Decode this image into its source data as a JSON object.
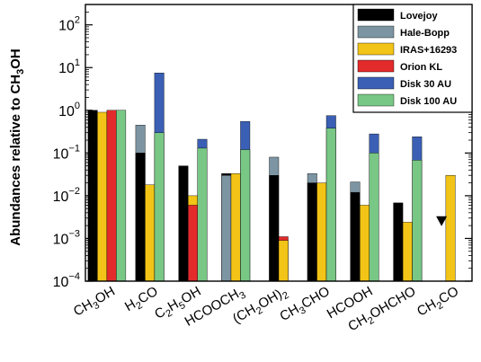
{
  "chart_data": {
    "type": "bar",
    "yscale": "log",
    "ylim": [
      0.0001,
      300
    ],
    "ylabel": "Abundances relative to CH3OH",
    "ylabel_parts": [
      {
        "t": "Abundances relative to CH",
        "sub": false
      },
      {
        "t": "3",
        "sub": true
      },
      {
        "t": "OH",
        "sub": false
      }
    ],
    "yticks": [
      {
        "value": 100,
        "exp": "2"
      },
      {
        "value": 10,
        "exp": "1"
      },
      {
        "value": 1,
        "exp": "0"
      },
      {
        "value": 0.1,
        "exp": "−1"
      },
      {
        "value": 0.01,
        "exp": "−2"
      },
      {
        "value": 0.001,
        "exp": "−3"
      },
      {
        "value": 0.0001,
        "exp": "−4"
      }
    ],
    "ytick_base": "10",
    "categories": [
      "CH3OH",
      "H2CO",
      "C2H5OH",
      "HCOOCH3",
      "(CH2OH)2",
      "CH3CHO",
      "HCOOH",
      "CH2OHCHO",
      "CH2CO"
    ],
    "category_labels": [
      [
        {
          "t": "CH",
          "sub": false
        },
        {
          "t": "3",
          "sub": true
        },
        {
          "t": "OH",
          "sub": false
        }
      ],
      [
        {
          "t": "H",
          "sub": false
        },
        {
          "t": "2",
          "sub": true
        },
        {
          "t": "CO",
          "sub": false
        }
      ],
      [
        {
          "t": "C",
          "sub": false
        },
        {
          "t": "2",
          "sub": true
        },
        {
          "t": "H",
          "sub": false
        },
        {
          "t": "5",
          "sub": true
        },
        {
          "t": "OH",
          "sub": false
        }
      ],
      [
        {
          "t": "HCOOCH",
          "sub": false
        },
        {
          "t": "3",
          "sub": true
        }
      ],
      [
        {
          "t": "(CH",
          "sub": false
        },
        {
          "t": "2",
          "sub": true
        },
        {
          "t": "OH)",
          "sub": false
        },
        {
          "t": "2",
          "sub": true
        }
      ],
      [
        {
          "t": "CH",
          "sub": false
        },
        {
          "t": "3",
          "sub": true
        },
        {
          "t": "CHO",
          "sub": false
        }
      ],
      [
        {
          "t": "HCOOH",
          "sub": false
        }
      ],
      [
        {
          "t": "CH",
          "sub": false
        },
        {
          "t": "2",
          "sub": true
        },
        {
          "t": "OHCHO",
          "sub": false
        }
      ],
      [
        {
          "t": "CH",
          "sub": false
        },
        {
          "t": "2",
          "sub": true
        },
        {
          "t": "CO",
          "sub": false
        }
      ]
    ],
    "groups": [
      {
        "category": "CH3OH",
        "bars": [
          {
            "series": "Lovejoy",
            "value": 1.0
          },
          {
            "series": "IRAS+16293",
            "value": 0.9
          },
          {
            "series": "Orion KL",
            "value": 1.0
          },
          {
            "series": "Disk 100 AU",
            "value": 1.0
          }
        ]
      },
      {
        "category": "H2CO",
        "bars": [
          {
            "series": "Lovejoy",
            "value": 0.1,
            "overlay": {
              "series": "Hale-Bopp",
              "value": 0.45
            }
          },
          {
            "series": "IRAS+16293",
            "value": 0.018
          },
          {
            "series": "Disk 100 AU",
            "value": 0.3,
            "overlay": {
              "series": "Disk 30 AU",
              "value": 7.5
            }
          }
        ]
      },
      {
        "category": "C2H5OH",
        "bars": [
          {
            "series": "Lovejoy",
            "value": 0.05
          },
          {
            "series": "Orion KL",
            "value": 0.006,
            "overlay": {
              "series": "IRAS+16293",
              "value": 0.01
            }
          },
          {
            "series": "Disk 100 AU",
            "value": 0.13,
            "overlay": {
              "series": "Disk 30 AU",
              "value": 0.21
            }
          }
        ]
      },
      {
        "category": "HCOOCH3",
        "bars": [
          {
            "series": "Hale-Bopp",
            "value": 0.03,
            "overlay": {
              "series": "Lovejoy",
              "value": 0.033
            }
          },
          {
            "series": "IRAS+16293",
            "value": 0.033
          },
          {
            "series": "Disk 100 AU",
            "value": 0.12,
            "overlay": {
              "series": "Disk 30 AU",
              "value": 0.55
            }
          }
        ]
      },
      {
        "category": "(CH2OH)2",
        "bars": [
          {
            "series": "Lovejoy",
            "value": 0.03,
            "overlay": {
              "series": "Hale-Bopp",
              "value": 0.08
            }
          },
          {
            "series": "IRAS+16293",
            "value": 0.0009,
            "overlay": {
              "series": "Orion KL",
              "value": 0.0011
            }
          }
        ]
      },
      {
        "category": "CH3CHO",
        "bars": [
          {
            "series": "Lovejoy",
            "value": 0.02,
            "overlay": {
              "series": "Hale-Bopp",
              "value": 0.033
            }
          },
          {
            "series": "IRAS+16293",
            "value": 0.02
          },
          {
            "series": "Disk 100 AU",
            "value": 0.38,
            "overlay": {
              "series": "Disk 30 AU",
              "value": 0.75
            }
          }
        ]
      },
      {
        "category": "HCOOH",
        "bars": [
          {
            "series": "Lovejoy",
            "value": 0.012,
            "overlay": {
              "series": "Hale-Bopp",
              "value": 0.021
            }
          },
          {
            "series": "IRAS+16293",
            "value": 0.006
          },
          {
            "series": "Disk 100 AU",
            "value": 0.1,
            "overlay": {
              "series": "Disk 30 AU",
              "value": 0.28
            }
          }
        ]
      },
      {
        "category": "CH2OHCHO",
        "bars": [
          {
            "series": "Lovejoy",
            "value": 0.0068
          },
          {
            "series": "IRAS+16293",
            "value": 0.0024
          },
          {
            "series": "Disk 100 AU",
            "value": 0.068,
            "overlay": {
              "series": "Disk 30 AU",
              "value": 0.24
            }
          }
        ]
      },
      {
        "category": "CH2CO",
        "upper_limit": {
          "series": "Lovejoy",
          "value": 0.0026
        },
        "bars": [
          {
            "series": "IRAS+16293",
            "value": 0.03
          }
        ]
      }
    ],
    "legend": {
      "placement": "top-right",
      "entries": [
        {
          "name": "Lovejoy",
          "color": "#000000"
        },
        {
          "name": "Hale-Bopp",
          "color": "#7d95a3"
        },
        {
          "name": "IRAS+16293",
          "color": "#f2c417"
        },
        {
          "name": "Orion KL",
          "color": "#e32b2b"
        },
        {
          "name": "Disk 30 AU",
          "color": "#3a5fb5"
        },
        {
          "name": "Disk 100 AU",
          "color": "#78c785"
        }
      ]
    },
    "grid": false
  }
}
